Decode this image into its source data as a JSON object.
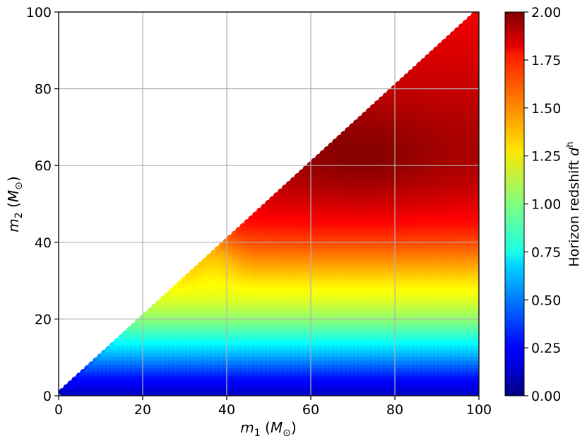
{
  "chart_data": {
    "type": "heatmap",
    "title": "",
    "xlabel": {
      "var": "m",
      "sub": "1",
      "unit": "M",
      "unit_sub": "⊙"
    },
    "ylabel": {
      "var": "m",
      "sub": "2",
      "unit": "M",
      "unit_sub": "⊙"
    },
    "xlim": [
      0,
      100
    ],
    "ylim": [
      0,
      100
    ],
    "xticks": [
      0,
      20,
      40,
      60,
      80,
      100
    ],
    "yticks": [
      0,
      20,
      40,
      60,
      80,
      100
    ],
    "grid": true,
    "domain": "m2 <= m1",
    "point_spacing": 1,
    "colorbar": {
      "label": "Horizon redshift",
      "label_var": "d",
      "label_sup": "h",
      "colormap": "jet",
      "vmin": 0.0,
      "vmax": 2.0,
      "ticks": [
        "0.00",
        "0.25",
        "0.50",
        "0.75",
        "1.00",
        "1.25",
        "1.50",
        "1.75",
        "2.00"
      ]
    },
    "value_profile_along_m2": {
      "m2": [
        0,
        5,
        10,
        15,
        20,
        25,
        30,
        35,
        40,
        45,
        50,
        55,
        60,
        65,
        70,
        75,
        80,
        85,
        90,
        95,
        100
      ],
      "d_h": [
        0.12,
        0.28,
        0.55,
        0.8,
        1.02,
        1.18,
        1.3,
        1.45,
        1.6,
        1.72,
        1.8,
        1.86,
        1.9,
        1.91,
        1.9,
        1.88,
        1.86,
        1.84,
        1.82,
        1.8,
        1.78
      ]
    }
  }
}
